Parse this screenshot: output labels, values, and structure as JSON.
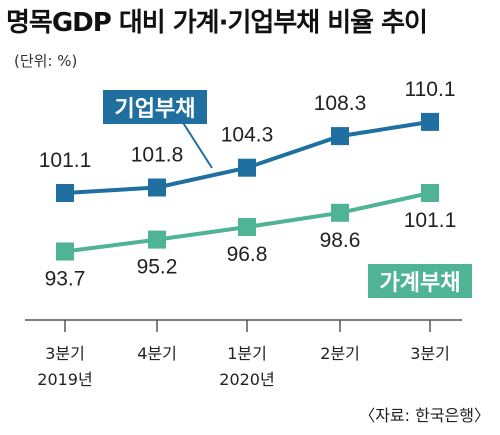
{
  "title": "명목GDP 대비 가계·기업부채 비율 추이",
  "unit": "(단위: %)",
  "source": "〈자료: 한국은행〉",
  "colors": {
    "corporate": "#1f6fa0",
    "household": "#4fb396",
    "axis": "#555555"
  },
  "chart_data": {
    "type": "line",
    "categories": [
      "3분기\n2019년",
      "4분기",
      "1분기\n2020년",
      "2분기",
      "3분기"
    ],
    "series": [
      {
        "name": "기업부채",
        "values": [
          101.1,
          101.8,
          104.3,
          108.3,
          110.1
        ]
      },
      {
        "name": "가계부채",
        "values": [
          93.7,
          95.2,
          96.8,
          98.6,
          101.1
        ]
      }
    ],
    "labels": {
      "corporate": [
        "101.1",
        "101.8",
        "104.3",
        "108.3",
        "110.1"
      ],
      "household": [
        "93.7",
        "95.2",
        "96.8",
        "98.6",
        "101.1"
      ]
    },
    "tick_lines": [
      [
        "3분기",
        "2019년"
      ],
      [
        "4분기"
      ],
      [
        "1분기",
        "2020년"
      ],
      [
        "2분기"
      ],
      [
        "3분기"
      ]
    ],
    "grid": false,
    "legend": "inline labels"
  }
}
